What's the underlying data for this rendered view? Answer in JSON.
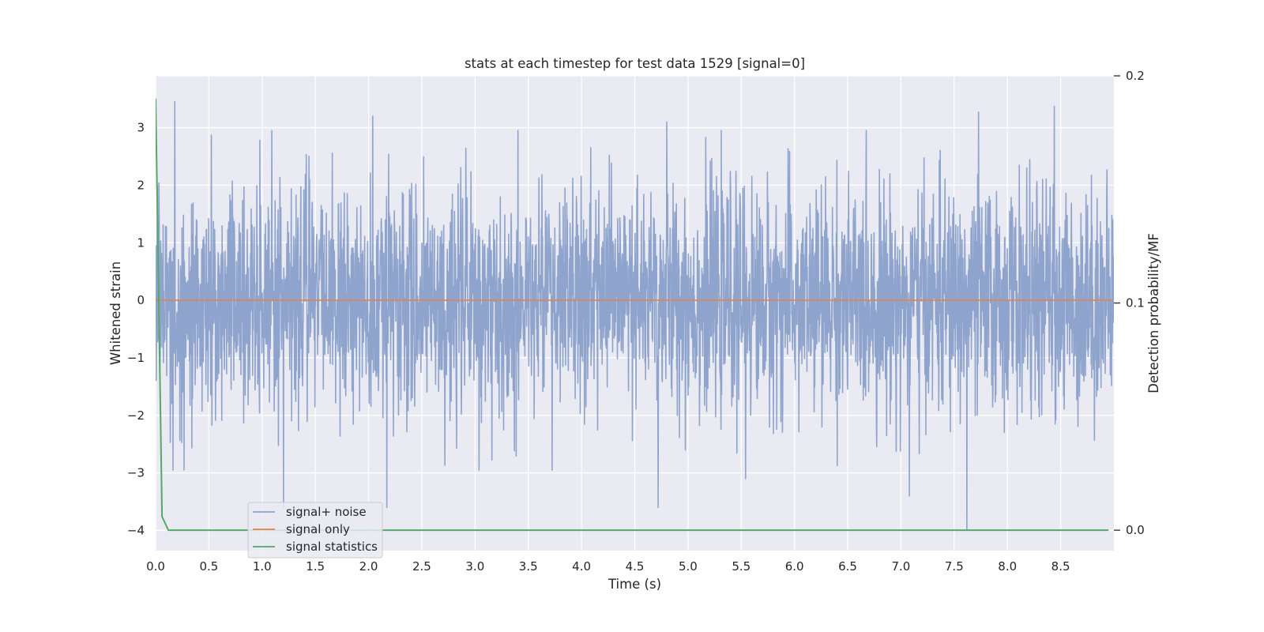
{
  "chart_data": {
    "type": "line",
    "title": "stats at each timestep for test data 1529 [signal=0]",
    "xlabel": "Time (s)",
    "ylabel": "Whitened strain",
    "ylabel_right": "Detection probability/MF",
    "xlim": [
      0.0,
      9.0
    ],
    "ylim": [
      -4.35,
      3.9
    ],
    "ylim_right": [
      -0.009,
      0.2
    ],
    "x_ticks": [
      "0.0",
      "0.5",
      "1.0",
      "1.5",
      "2.0",
      "2.5",
      "3.0",
      "3.5",
      "4.0",
      "4.5",
      "5.0",
      "5.5",
      "6.0",
      "6.5",
      "7.0",
      "7.5",
      "8.0",
      "8.5"
    ],
    "y_ticks": [
      "3",
      "2",
      "1",
      "0",
      "−1",
      "−2",
      "−3",
      "−4"
    ],
    "y_ticks_right": [
      "0.2",
      "0.1",
      "0.0"
    ],
    "grid": true,
    "legend_position": "lower-left",
    "colors": {
      "background": "#eaeaf2",
      "grid": "#ffffff",
      "signal_noise": "#8fa4cd",
      "signal_only": "#dd8452",
      "signal_statistics": "#55a868"
    },
    "series": [
      {
        "name": "signal+ noise",
        "axis": "left",
        "description_stats": {
          "mean": 0.0,
          "std": 0.95
        },
        "notable_peaks": [
          [
            0.18,
            3.45
          ],
          [
            2.04,
            3.2
          ],
          [
            4.8,
            3.1
          ],
          [
            8.44,
            3.37
          ],
          [
            7.73,
            3.27
          ],
          [
            1.2,
            -3.6
          ],
          [
            2.17,
            -3.6
          ],
          [
            4.72,
            -3.6
          ],
          [
            7.62,
            -4.0
          ],
          [
            5.54,
            -3.1
          ],
          [
            7.08,
            -3.4
          ]
        ]
      },
      {
        "name": "signal only",
        "axis": "left",
        "x": [
          0.0,
          8.99
        ],
        "y": [
          0.0,
          0.0
        ]
      },
      {
        "name": "signal statistics",
        "axis": "right",
        "x": [
          0.0,
          0.03,
          0.06,
          0.12,
          0.5,
          1.0,
          2.0,
          3.0,
          4.0,
          5.0,
          6.0,
          7.0,
          8.0,
          8.95
        ],
        "y": [
          0.19,
          0.1,
          0.006,
          0.0,
          0.0,
          0.0,
          0.0,
          0.0,
          0.0,
          0.0,
          0.0,
          0.0,
          0.0,
          0.0
        ]
      }
    ]
  }
}
